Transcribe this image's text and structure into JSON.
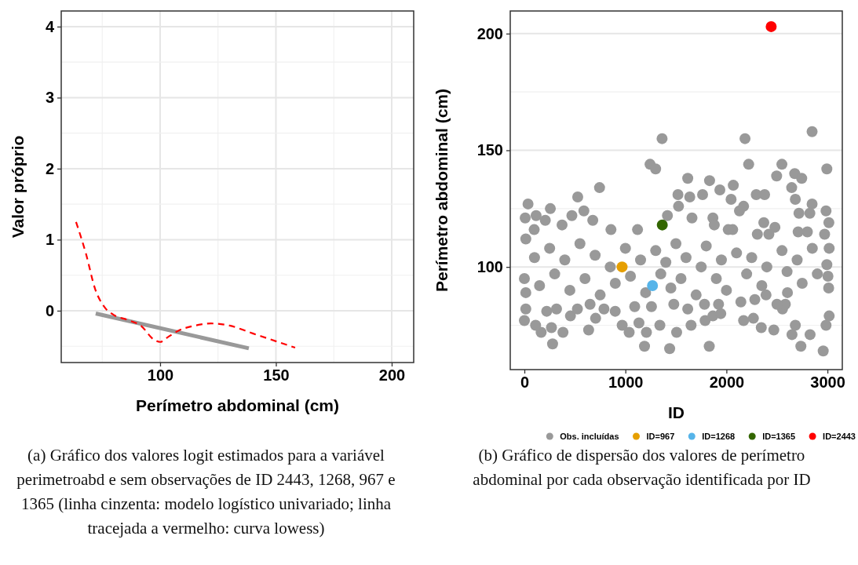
{
  "chart_data": [
    {
      "type": "line",
      "xlabel": "Perímetro abdominal (cm)",
      "ylabel": "Valor próprio",
      "xlim": [
        57.3,
        209.5
      ],
      "ylim": [
        -0.73,
        4.22
      ],
      "xticks": [
        100,
        150,
        200
      ],
      "yticks": [
        0,
        1,
        2,
        3,
        4
      ],
      "grid": true,
      "series": [
        {
          "color": "#999999",
          "line_style": "solid",
          "x": [
            72.2,
            138.3
          ],
          "values": [
            -0.04,
            -0.53
          ]
        },
        {
          "color": "#ff0000",
          "line_style": "dashed",
          "x": [
            63.7,
            68,
            72,
            76,
            80,
            86,
            92,
            97,
            100,
            103,
            108,
            115,
            122,
            130,
            140,
            150,
            158.3
          ],
          "values": [
            1.25,
            0.8,
            0.3,
            0.05,
            -0.06,
            -0.13,
            -0.22,
            -0.4,
            -0.44,
            -0.38,
            -0.28,
            -0.21,
            -0.18,
            -0.21,
            -0.32,
            -0.43,
            -0.52
          ]
        }
      ],
      "annotations": [
        "(a) Gráfico dos valores logit estimados para a variável perimetroabd e sem observações de ID 2443, 1268, 967 e 1365 (linha cinzenta: modelo logístico univariado; linha tracejada a vermelho: curva lowess)"
      ]
    },
    {
      "type": "scatter",
      "xlabel": "ID",
      "ylabel": "Perímetro abdominal (cm)",
      "xlim": [
        -140,
        3147
      ],
      "ylim": [
        56,
        209.7
      ],
      "xticks": [
        0,
        1000,
        2000,
        3000
      ],
      "yticks": [
        100,
        150,
        200
      ],
      "grid": "y",
      "legend": "bottom",
      "marker": "circle",
      "series": [
        {
          "name": "Obs. incluídas",
          "color": "#999999",
          "x": [
            36,
            8,
            116,
            207,
            257,
            744,
            528,
            589,
            279,
            382,
            166,
            268,
            456,
            636,
            705,
            968,
            1037,
            1189,
            1208,
            1134,
            1244,
            1299,
            1363,
            1341,
            1438,
            1507,
            1526,
            1520,
            1617,
            1637,
            1659,
            1764,
            1833,
            1935,
            1830,
            1866,
            1944,
            1789,
            1650,
            2068,
            2046,
            2129,
            2170,
            2184,
            2220,
            2170,
            2295,
            2378,
            2370,
            2345,
            2267,
            2497,
            2549,
            2469,
            2480,
            2646,
            2682,
            2676,
            2745,
            2718,
            2848,
            2848,
            2826,
            2994,
            2986,
            3014,
            2649,
            2682,
            2737,
            2828,
            2958,
            2986,
            2555,
            2583,
            2604,
            2500,
            3017,
            3012,
            3005,
            2994,
            3017,
            2972,
            2801,
            2710,
            2420,
            2306,
            2062,
            2018,
            1866,
            1880,
            1416,
            1120,
            857,
            677,
            470,
            373,
            97,
            14,
            0,
            14,
            14,
            0,
            111,
            221,
            318,
            525,
            650,
            788,
            899,
            1092,
            1258,
            1479,
            1617,
            1783,
            1922,
            2143,
            2281,
            2392,
            100,
            150,
            250,
            300,
            400,
            450,
            550,
            600,
            700,
            750,
            850,
            900,
            1000,
            1050,
            1150,
            1200,
            1300,
            1350,
            1400,
            1450,
            1500,
            1550,
            1600,
            1700,
            1750,
            1800,
            1900,
            1950,
            2000,
            2100,
            2200,
            2250,
            2350,
            2400,
            2550,
            2600,
            2700,
            2750,
            2850,
            2900
          ],
          "values": [
            127,
            121,
            122,
            120,
            125,
            134,
            130,
            124,
            67,
            72,
            72,
            74,
            79,
            73,
            78,
            75,
            72,
            66,
            72,
            76,
            144,
            142,
            155,
            75,
            65,
            72,
            126,
            131,
            138,
            130,
            121,
            131,
            137,
            133,
            66,
            79,
            80,
            77,
            75,
            135,
            129,
            124,
            126,
            155,
            144,
            77,
            131,
            131,
            119,
            74,
            78,
            139,
            144,
            73,
            117,
            134,
            129,
            140,
            138,
            123,
            158,
            127,
            123,
            142,
            124,
            119,
            71,
            75,
            66,
            71,
            64,
            75,
            82,
            84,
            89,
            84,
            79,
            91,
            96,
            101,
            108,
            114,
            115,
            115,
            114,
            114,
            116,
            116,
            121,
            118,
            122,
            116,
            116,
            120,
            122,
            118,
            116,
            112,
            95,
            89,
            82,
            77,
            75,
            81,
            82,
            82,
            84,
            82,
            81,
            83,
            83,
            84,
            82,
            84,
            84,
            85,
            86,
            88,
            104,
            92,
            108,
            97,
            103,
            90,
            110,
            95,
            105,
            88,
            100,
            93,
            108,
            96,
            103,
            89,
            107,
            97,
            102,
            91,
            110,
            95,
            104,
            88,
            100,
            109,
            95,
            103,
            90,
            106,
            97,
            104,
            92,
            100,
            107,
            98,
            103,
            93,
            108,
            97
          ]
        },
        {
          "name": "ID=967",
          "color": "#e69f00",
          "x": [
            967
          ],
          "values": [
            100
          ]
        },
        {
          "name": "ID=1268",
          "color": "#56b4e9",
          "x": [
            1268
          ],
          "values": [
            92
          ]
        },
        {
          "name": "ID=1365",
          "color": "#336600",
          "x": [
            1365
          ],
          "values": [
            118
          ]
        },
        {
          "name": "ID=2443",
          "color": "#ff0000",
          "x": [
            2443
          ],
          "values": [
            203
          ]
        }
      ],
      "annotations": [
        "(b) Gráfico de dispersão dos valores de perímetro abdominal por cada observação identificada por ID"
      ]
    }
  ]
}
